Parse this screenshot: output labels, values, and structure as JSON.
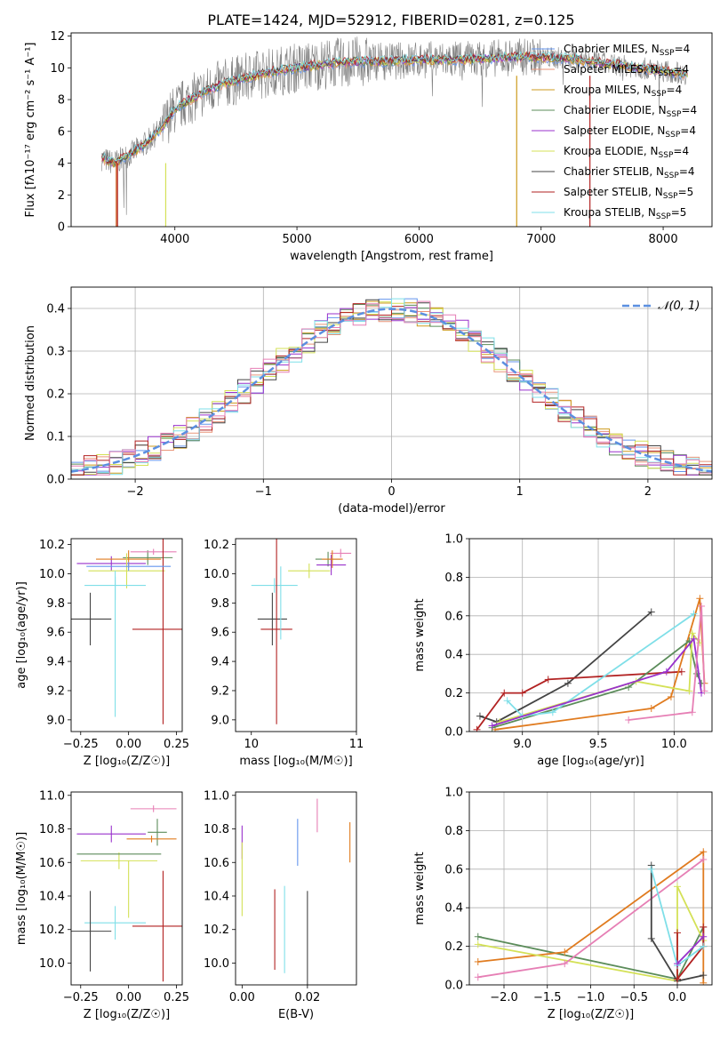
{
  "title": "PLATE=1424, MJD=52912, FIBERID=0281, z=0.125",
  "colors": {
    "chabrier_miles": "#6495ed",
    "salpeter_miles": "#e9967a",
    "kroupa_miles": "#cd9b1d",
    "chabrier_elodie": "#5b8c5a",
    "salpeter_elodie": "#9932cc",
    "kroupa_elodie": "#d4e157",
    "chabrier_stelib": "#444444",
    "salpeter_stelib": "#b22222",
    "kroupa_stelib": "#7fdfe8",
    "bar_orange": "#e07b1f",
    "bar_pink": "#e67fb5",
    "normal_fit": "#5b8fe0"
  },
  "chart_data": [
    {
      "id": "spectrum",
      "type": "line",
      "title": "PLATE=1424, MJD=52912, FIBERID=0281, z=0.125",
      "xlabel": "wavelength [Angstrom, rest frame]",
      "ylabel": "Flux [fλ10⁻¹⁷ erg cm⁻² s⁻¹ A⁻¹]",
      "xlim": [
        3150,
        8400
      ],
      "ylim": [
        0,
        12.2
      ],
      "xticks": [
        "4000",
        "5000",
        "6000",
        "7000",
        "8000"
      ],
      "yticks": [
        "0",
        "2",
        "4",
        "6",
        "8",
        "10",
        "12"
      ],
      "grid": false,
      "legend_position": "top-right",
      "series": [
        {
          "name": "Chabrier MILES, N_SSP=4",
          "color": "#6495ed"
        },
        {
          "name": "Salpeter MILES, N_SSP=4",
          "color": "#e9967a"
        },
        {
          "name": "Kroupa MILES, N_SSP=4",
          "color": "#cd9b1d"
        },
        {
          "name": "Chabrier ELODIE, N_SSP=4",
          "color": "#5b8c5a"
        },
        {
          "name": "Salpeter ELODIE, N_SSP=4",
          "color": "#9932cc"
        },
        {
          "name": "Kroupa ELODIE, N_SSP=4",
          "color": "#d4e157"
        },
        {
          "name": "Chabrier STELIB, N_SSP=4",
          "color": "#444444"
        },
        {
          "name": "Salpeter STELIB, N_SSP=5",
          "color": "#b22222"
        },
        {
          "name": "Kroupa STELIB, N_SSP=5",
          "color": "#7fdfe8"
        }
      ],
      "continuum": {
        "x": [
          3400,
          3500,
          3600,
          3700,
          3800,
          3900,
          4000,
          4100,
          4200,
          4300,
          4400,
          4500,
          4700,
          4900,
          5100,
          5300,
          5500,
          5700,
          6000,
          6300,
          6600,
          6900,
          7200,
          7500,
          7800,
          8000,
          8200
        ],
        "y": [
          4.3,
          4.0,
          4.4,
          4.9,
          5.5,
          6.3,
          7.4,
          7.9,
          8.3,
          8.7,
          9.0,
          9.2,
          9.6,
          9.9,
          10.1,
          10.3,
          10.4,
          10.4,
          10.5,
          10.5,
          10.6,
          10.7,
          10.6,
          10.3,
          10.0,
          9.8,
          9.6
        ]
      }
    },
    {
      "id": "residuals",
      "type": "bar",
      "xlabel": "(data-model)/error",
      "ylabel": "Normed distribution",
      "xlim": [
        -2.5,
        2.5
      ],
      "ylim": [
        0,
        0.45
      ],
      "xticks": [
        "−2",
        "−1",
        "0",
        "1",
        "2"
      ],
      "yticks": [
        "0.0",
        "0.1",
        "0.2",
        "0.3",
        "0.4"
      ],
      "grid": true,
      "legend": "𝒩(0, 1)",
      "legend_position": "top-right"
    },
    {
      "id": "age-vs-Z",
      "type": "scatter",
      "xlabel": "Z [log₁₀(Z/Z☉)]",
      "ylabel": "age  [log₁₀(age/yr)]",
      "xlim": [
        -0.3,
        0.28
      ],
      "ylim": [
        8.92,
        10.24
      ],
      "xticks": [
        "−0.25",
        "0.00",
        "0.25"
      ],
      "yticks": [
        "9.0",
        "9.2",
        "9.4",
        "9.6",
        "9.8",
        "10.0",
        "10.2"
      ]
    },
    {
      "id": "age-vs-mass",
      "type": "scatter",
      "xlabel": "mass [log₁₀(M/M☉)]",
      "xlim": [
        9.85,
        11.0
      ],
      "ylim": [
        8.92,
        10.24
      ],
      "xticks": [
        "10",
        "11"
      ],
      "yticks": [
        "9.0",
        "9.2",
        "9.4",
        "9.6",
        "9.8",
        "10.0",
        "10.2"
      ]
    },
    {
      "id": "mass-weight-vs-age",
      "type": "line",
      "xlabel": "age  [log₁₀(age/yr)]",
      "ylabel": "mass weight",
      "xlim": [
        8.65,
        10.25
      ],
      "ylim": [
        0,
        1
      ],
      "xticks": [
        "9.0",
        "9.5",
        "10.0"
      ],
      "yticks": [
        "0.0",
        "0.2",
        "0.4",
        "0.6",
        "0.8",
        "1.0"
      ],
      "grid": true
    },
    {
      "id": "mass-vs-Z",
      "type": "scatter",
      "xlabel": "Z [log₁₀(Z/Z☉)]",
      "ylabel": "mass [log₁₀(M/M☉)]",
      "xlim": [
        -0.3,
        0.28
      ],
      "ylim": [
        9.87,
        11.02
      ],
      "xticks": [
        "−0.25",
        "0.00",
        "0.25"
      ],
      "yticks": [
        "10.0",
        "10.2",
        "10.4",
        "10.6",
        "10.8",
        "11.0"
      ]
    },
    {
      "id": "mass-vs-ebv",
      "type": "scatter",
      "xlabel": "E(B-V)",
      "xlim": [
        -0.002,
        0.035
      ],
      "ylim": [
        9.87,
        11.02
      ],
      "xticks": [
        "0.00",
        "0.02"
      ],
      "yticks": [
        "10.0",
        "10.2",
        "10.4",
        "10.6",
        "10.8",
        "11.0"
      ]
    },
    {
      "id": "mass-weight-vs-Z",
      "type": "line",
      "xlabel": "Z [log₁₀(Z/Z☉)]",
      "ylabel": "mass weight",
      "xlim": [
        -2.4,
        0.4
      ],
      "ylim": [
        0,
        1
      ],
      "xticks": [
        "−2.0",
        "−1.5",
        "−1.0",
        "−0.5",
        "0.0"
      ],
      "yticks": [
        "0.0",
        "0.2",
        "0.4",
        "0.6",
        "0.8",
        "1.0"
      ],
      "grid": true
    }
  ]
}
